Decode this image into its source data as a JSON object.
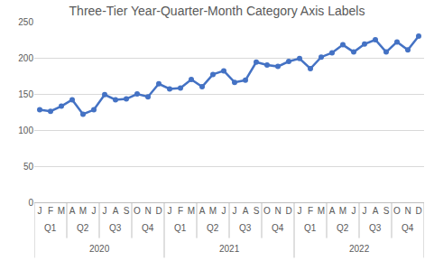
{
  "chart_data": {
    "type": "line",
    "title": "Three-Tier Year-Quarter-Month Category Axis Labels",
    "categories": [
      "J",
      "F",
      "M",
      "A",
      "M",
      "J",
      "J",
      "A",
      "S",
      "O",
      "N",
      "D",
      "J",
      "F",
      "M",
      "A",
      "M",
      "J",
      "J",
      "A",
      "S",
      "O",
      "N",
      "D",
      "J",
      "F",
      "M",
      "A",
      "M",
      "J",
      "J",
      "A",
      "S",
      "O",
      "N",
      "D"
    ],
    "quarters": [
      "Q1",
      "Q2",
      "Q3",
      "Q4",
      "Q1",
      "Q2",
      "Q3",
      "Q4",
      "Q1",
      "Q2",
      "Q3",
      "Q4"
    ],
    "years": [
      "2020",
      "2021",
      "2022"
    ],
    "values": [
      128,
      126,
      133,
      142,
      122,
      128,
      149,
      142,
      143,
      150,
      146,
      164,
      157,
      158,
      170,
      160,
      177,
      182,
      166,
      169,
      194,
      190,
      188,
      195,
      199,
      185,
      201,
      207,
      218,
      208,
      219,
      225,
      208,
      222,
      211,
      230
    ],
    "color": "#4472c4",
    "marker": "circle",
    "ylim": [
      0,
      250
    ],
    "yticks": [
      0,
      50,
      100,
      150,
      200,
      250
    ],
    "grid": true
  }
}
